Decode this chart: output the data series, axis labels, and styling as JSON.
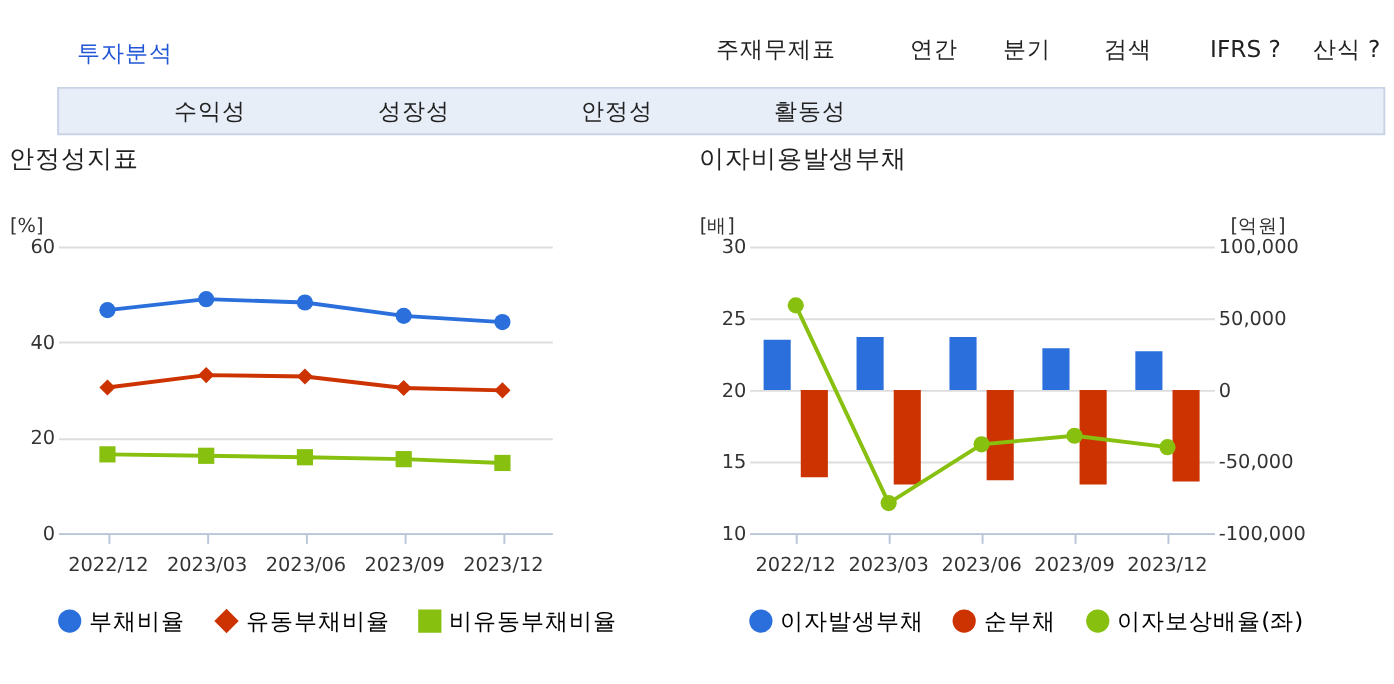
{
  "chart_data": [
    {
      "type": "line",
      "title": "안정성지표",
      "ylabel": "[%]",
      "annotations": [
        "투자분석",
        "주재무제표",
        "연간",
        "분기",
        "검색",
        "IFRS ?",
        "산식 ?",
        "수익성",
        "성장성",
        "안정성",
        "활동성"
      ],
      "categories": [
        "2022/12",
        "2023/03",
        "2023/06",
        "2023/09",
        "2023/12"
      ],
      "series": [
        {
          "name": "부채비율",
          "color": "#2a6fdb",
          "marker": "circle",
          "values": [
            46.7,
            49.0,
            48.3,
            45.5,
            44.2
          ]
        },
        {
          "name": "유동부채비율",
          "color": "#cc3300",
          "marker": "diamond",
          "values": [
            30.5,
            33.1,
            32.8,
            30.4,
            29.9
          ]
        },
        {
          "name": "비유동부채비율",
          "color": "#88c010",
          "marker": "square",
          "values": [
            16.5,
            16.2,
            15.9,
            15.5,
            14.7
          ]
        }
      ],
      "ylim": [
        0,
        60
      ],
      "yticks": [
        0,
        20,
        40,
        60
      ],
      "grid": "y",
      "legend": "bottom"
    },
    {
      "type": "bar",
      "title": "이자비용발생부채",
      "ylabel": "[배]",
      "y2label": "[억원]",
      "categories": [
        "2022/12",
        "2023/03",
        "2023/06",
        "2023/09",
        "2023/12"
      ],
      "series": [
        {
          "name": "이자발생부채",
          "color": "#2a6fdb",
          "axis": "y2",
          "values": [
            35000,
            37000,
            37000,
            29000,
            27000
          ]
        },
        {
          "name": "순부채",
          "color": "#cc3300",
          "axis": "y2",
          "values": [
            -61000,
            -66000,
            -63000,
            -66000,
            -64000
          ]
        },
        {
          "name": "이자보상배율(좌)",
          "type": "line",
          "color": "#88c010",
          "marker": "circle",
          "values": [
            25.9,
            12.1,
            16.2,
            16.8,
            16.0
          ]
        }
      ],
      "ylim": [
        10,
        30
      ],
      "yticks": [
        10,
        15,
        20,
        25,
        30
      ],
      "y2lim": [
        -100000,
        100000
      ],
      "y2ticks": [
        {
          "value": -100000,
          "label": "-100,000"
        },
        {
          "value": -50000,
          "label": "-50,000"
        },
        0,
        {
          "value": 50000,
          "label": "50,000"
        },
        {
          "value": 100000,
          "label": "100,000"
        }
      ],
      "grid": "y",
      "legend": "bottom"
    }
  ]
}
